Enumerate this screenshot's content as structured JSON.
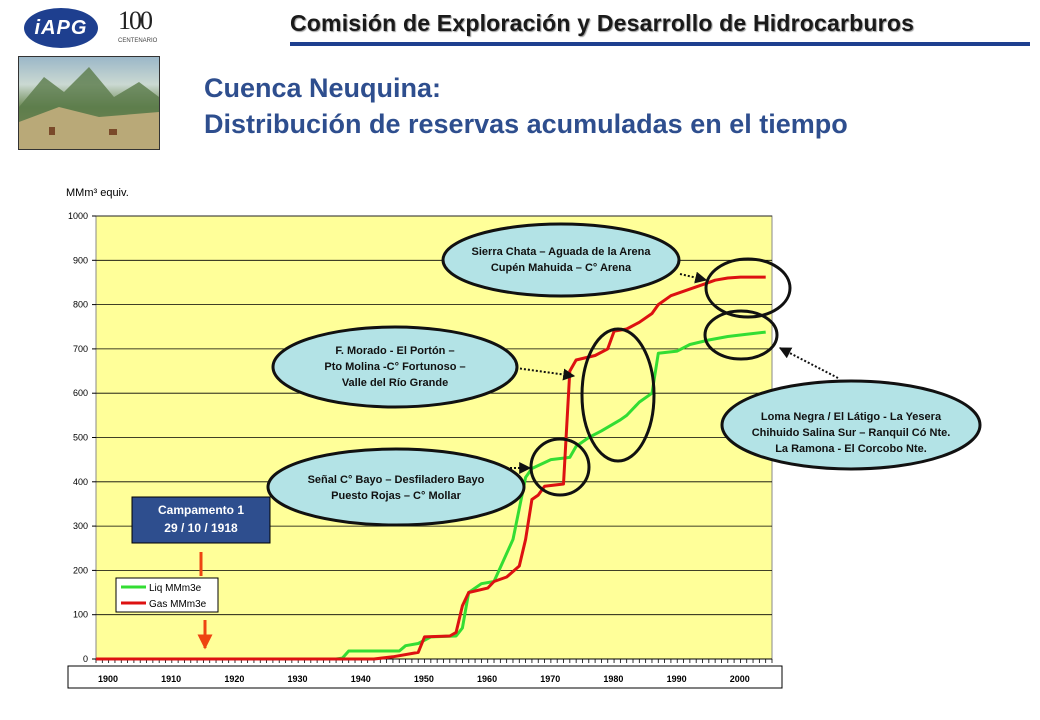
{
  "header": {
    "title": "Comisión de Exploración y Desarrollo de Hidrocarburos",
    "logo_text": "iAPG",
    "centenario_number": "100",
    "centenario_caption": "CENTENARIO"
  },
  "slide": {
    "title_line1": "Cuenca Neuquina:",
    "title_line2": "Distribución de reservas acumuladas en el tiempo"
  },
  "colors": {
    "liq": "#33dd33",
    "gas": "#dd1111",
    "plot_bg": "#ffff99",
    "callout": "#b3e3e6",
    "title": "#2e4e8e"
  },
  "chart_data": {
    "type": "line",
    "ylabel": "MMm³ equiv.",
    "ylim": [
      0,
      1000
    ],
    "yticks": [
      0,
      100,
      200,
      300,
      400,
      500,
      600,
      700,
      800,
      900,
      1000
    ],
    "xlim": [
      1900,
      2007
    ],
    "xtick_labels": [
      "1900",
      "1910",
      "1920",
      "1930",
      "1940",
      "1950",
      "1960",
      "1970",
      "1980",
      "1990",
      "2000"
    ],
    "legend": {
      "position": "bottom-left",
      "entries": [
        "Liq MMm3e",
        "Gas MMm3e"
      ]
    },
    "grid": true,
    "series": [
      {
        "name": "Liq MMm3e",
        "color": "#33dd33",
        "points": [
          [
            1900,
            0
          ],
          [
            1938,
            0
          ],
          [
            1939,
            2
          ],
          [
            1940,
            18
          ],
          [
            1948,
            18
          ],
          [
            1949,
            30
          ],
          [
            1951,
            35
          ],
          [
            1953,
            50
          ],
          [
            1957,
            52
          ],
          [
            1958,
            70
          ],
          [
            1959,
            150
          ],
          [
            1961,
            170
          ],
          [
            1963,
            175
          ],
          [
            1966,
            270
          ],
          [
            1967,
            340
          ],
          [
            1968,
            410
          ],
          [
            1969,
            430
          ],
          [
            1972,
            450
          ],
          [
            1975,
            455
          ],
          [
            1976,
            480
          ],
          [
            1978,
            500
          ],
          [
            1980,
            515
          ],
          [
            1983,
            540
          ],
          [
            1984,
            550
          ],
          [
            1986,
            580
          ],
          [
            1988,
            600
          ],
          [
            1989,
            690
          ],
          [
            1992,
            695
          ],
          [
            1994,
            710
          ],
          [
            1997,
            720
          ],
          [
            2000,
            728
          ],
          [
            2003,
            733
          ],
          [
            2006,
            738
          ]
        ]
      },
      {
        "name": "Gas MMm3e",
        "color": "#dd1111",
        "points": [
          [
            1900,
            0
          ],
          [
            1944,
            0
          ],
          [
            1947,
            5
          ],
          [
            1951,
            15
          ],
          [
            1952,
            50
          ],
          [
            1956,
            52
          ],
          [
            1957,
            60
          ],
          [
            1958,
            120
          ],
          [
            1959,
            150
          ],
          [
            1962,
            160
          ],
          [
            1963,
            175
          ],
          [
            1965,
            185
          ],
          [
            1967,
            210
          ],
          [
            1968,
            270
          ],
          [
            1969,
            360
          ],
          [
            1970,
            370
          ],
          [
            1971,
            390
          ],
          [
            1974,
            395
          ],
          [
            1975,
            650
          ],
          [
            1976,
            675
          ],
          [
            1979,
            685
          ],
          [
            1981,
            700
          ],
          [
            1982,
            740
          ],
          [
            1984,
            745
          ],
          [
            1986,
            760
          ],
          [
            1988,
            780
          ],
          [
            1989,
            800
          ],
          [
            1991,
            820
          ],
          [
            1994,
            835
          ],
          [
            1996,
            845
          ],
          [
            1998,
            855
          ],
          [
            2000,
            860
          ],
          [
            2002,
            862
          ],
          [
            2006,
            862
          ]
        ]
      }
    ],
    "annotations": [
      {
        "lines": [
          "Sierra Chata – Aguada de la Arena",
          "Cupén Mahuida – C° Arena"
        ]
      },
      {
        "lines": [
          "F. Morado - El Portón –",
          "Pto Molina -C° Fortunoso –",
          "Valle del  Río Grande"
        ]
      },
      {
        "lines": [
          "Señal C° Bayo – Desfiladero Bayo",
          "Puesto Rojas – C° Mollar"
        ]
      },
      {
        "lines": [
          "Loma Negra / El Látigo - La Yesera",
          "Chihuido Salina Sur – Ranquil Có Nte.",
          "La Ramona - El Corcobo Nte."
        ]
      },
      {
        "lines": [
          "Campamento 1",
          "29 / 10 / 1918"
        ]
      }
    ]
  }
}
